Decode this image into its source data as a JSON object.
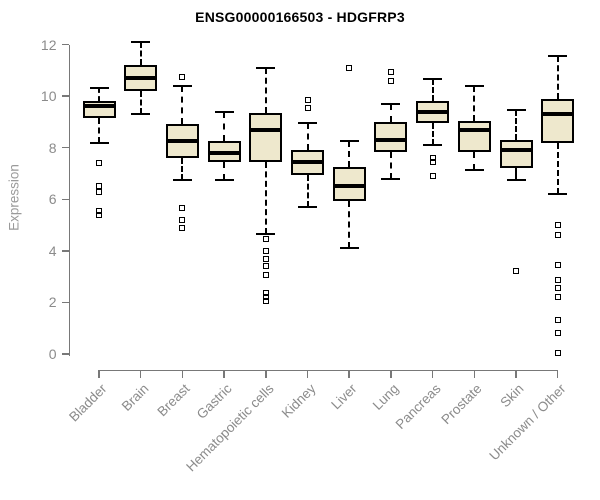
{
  "chart_data": {
    "type": "boxplot",
    "title": "ENSG00000166503 - HDGFRP3",
    "ylabel": "Expression",
    "xlabel": "",
    "ylim": [
      0,
      12
    ],
    "yticks": [
      0,
      2,
      4,
      6,
      8,
      10,
      12
    ],
    "grid": false,
    "legend": "none",
    "categories": [
      "Bladder",
      "Brain",
      "Breast",
      "Gastric",
      "Hematopoietic cells",
      "Kidney",
      "Liver",
      "Lung",
      "Pancreas",
      "Prostate",
      "Skin",
      "Unknown / Other"
    ],
    "series": [
      {
        "name": "Bladder",
        "whisker_low": 8.2,
        "q1": 9.15,
        "median": 9.6,
        "q3": 9.8,
        "whisker_high": 10.3,
        "outliers": [
          7.4,
          6.5,
          6.3,
          5.55,
          5.4
        ]
      },
      {
        "name": "Brain",
        "whisker_low": 9.3,
        "q1": 10.2,
        "median": 10.7,
        "q3": 11.2,
        "whisker_high": 12.1,
        "outliers": []
      },
      {
        "name": "Breast",
        "whisker_low": 6.75,
        "q1": 7.6,
        "median": 8.25,
        "q3": 8.9,
        "whisker_high": 10.4,
        "outliers": [
          10.75,
          5.65,
          5.2,
          4.9
        ]
      },
      {
        "name": "Gastric",
        "whisker_low": 6.75,
        "q1": 7.45,
        "median": 7.8,
        "q3": 8.25,
        "whisker_high": 9.4,
        "outliers": []
      },
      {
        "name": "Hematopoietic cells",
        "whisker_low": 4.65,
        "q1": 7.45,
        "median": 8.7,
        "q3": 9.35,
        "whisker_high": 11.1,
        "outliers": [
          4.45,
          4.0,
          3.7,
          3.4,
          3.05,
          2.35,
          2.2,
          2.05
        ]
      },
      {
        "name": "Kidney",
        "whisker_low": 5.7,
        "q1": 6.95,
        "median": 7.45,
        "q3": 7.9,
        "whisker_high": 8.95,
        "outliers": [
          9.85,
          9.55
        ]
      },
      {
        "name": "Liver",
        "whisker_low": 4.1,
        "q1": 5.95,
        "median": 6.5,
        "q3": 7.25,
        "whisker_high": 8.25,
        "outliers": [
          11.1
        ]
      },
      {
        "name": "Lung",
        "whisker_low": 6.8,
        "q1": 7.85,
        "median": 8.3,
        "q3": 9.0,
        "whisker_high": 9.7,
        "outliers": [
          10.95,
          10.6
        ]
      },
      {
        "name": "Pancreas",
        "whisker_low": 8.1,
        "q1": 8.95,
        "median": 9.4,
        "q3": 9.8,
        "whisker_high": 10.65,
        "outliers": [
          7.6,
          7.45,
          6.9
        ]
      },
      {
        "name": "Prostate",
        "whisker_low": 7.15,
        "q1": 7.85,
        "median": 8.7,
        "q3": 9.05,
        "whisker_high": 10.4,
        "outliers": []
      },
      {
        "name": "Skin",
        "whisker_low": 6.75,
        "q1": 7.2,
        "median": 7.9,
        "q3": 8.3,
        "whisker_high": 9.45,
        "outliers": [
          3.2
        ]
      },
      {
        "name": "Unknown / Other",
        "whisker_low": 6.2,
        "q1": 8.2,
        "median": 9.3,
        "q3": 9.9,
        "whisker_high": 11.55,
        "outliers": [
          5.0,
          4.6,
          3.45,
          2.85,
          2.55,
          2.2,
          1.3,
          0.8,
          0.05
        ]
      }
    ],
    "colors": {
      "box_fill": "#EEE8CD",
      "box_border": "#000000",
      "median": "#000000",
      "axis": "#787878",
      "tick_label": "#8b8b8b",
      "title": "#000000"
    }
  }
}
